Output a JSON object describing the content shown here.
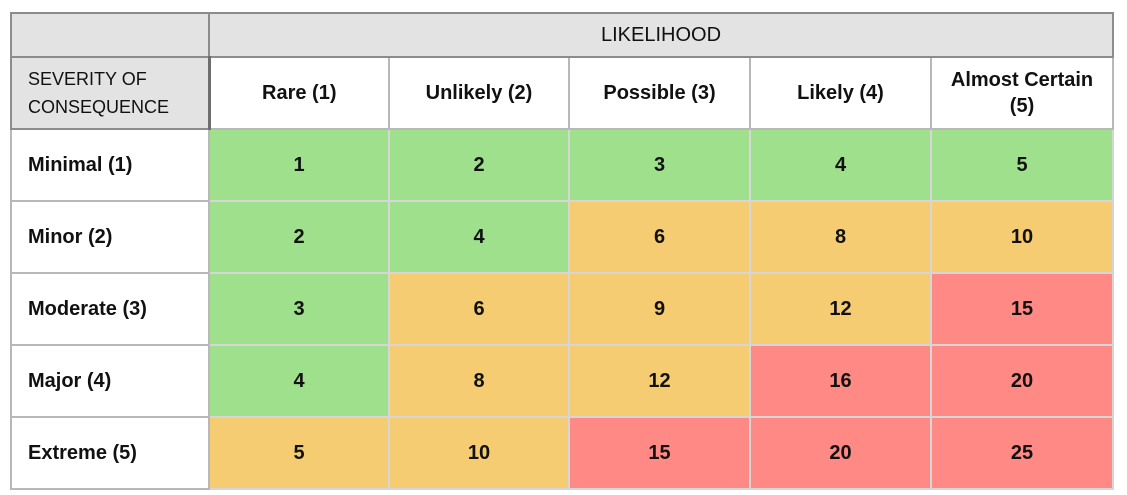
{
  "chart_data": {
    "type": "heatmap",
    "title": "",
    "xlabel": "LIKELIHOOD",
    "ylabel": "SEVERITY OF CONSEQUENCE",
    "categories_x": [
      "Rare (1)",
      "Unlikely (2)",
      "Possible (3)",
      "Likely (4)",
      "Almost Certain (5)"
    ],
    "categories_y": [
      "Minimal (1)",
      "Minor (2)",
      "Moderate (3)",
      "Major (4)",
      "Extreme (5)"
    ],
    "values": [
      [
        1,
        2,
        3,
        4,
        5
      ],
      [
        2,
        4,
        6,
        8,
        10
      ],
      [
        3,
        6,
        9,
        12,
        15
      ],
      [
        4,
        8,
        12,
        16,
        20
      ],
      [
        5,
        10,
        15,
        20,
        25
      ]
    ],
    "levels": [
      [
        "low",
        "low",
        "low",
        "low",
        "low"
      ],
      [
        "low",
        "low",
        "medium",
        "medium",
        "medium"
      ],
      [
        "low",
        "medium",
        "medium",
        "medium",
        "high"
      ],
      [
        "low",
        "medium",
        "medium",
        "high",
        "high"
      ],
      [
        "medium",
        "medium",
        "high",
        "high",
        "high"
      ]
    ],
    "level_colors": {
      "low": "#9fe08d",
      "medium": "#f6cc72",
      "high": "#ff8a85"
    }
  }
}
